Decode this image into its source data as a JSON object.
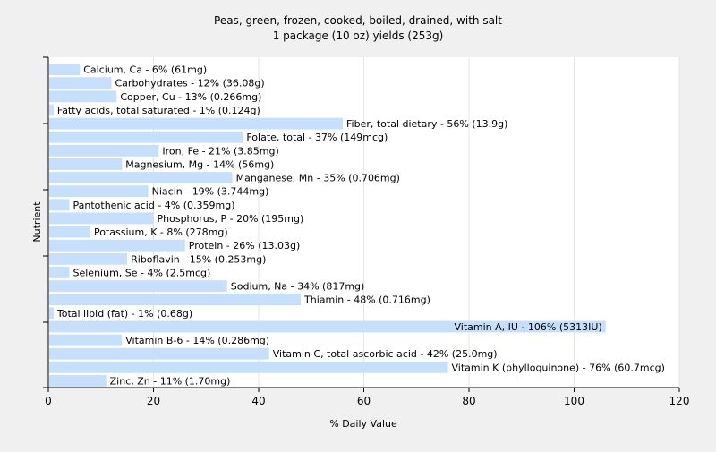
{
  "chart_data": {
    "type": "bar",
    "orientation": "horizontal",
    "title": "Peas, green, frozen, cooked, boiled, drained, with salt",
    "subtitle": "1 package (10 oz) yields (253g)",
    "xlabel": "% Daily Value",
    "ylabel": "Nutrient",
    "xlim": [
      0,
      120
    ],
    "xticks": [
      0,
      20,
      40,
      60,
      80,
      100,
      120
    ],
    "grid": true,
    "bar_color": "#c6dffc",
    "background_color": "#f0f0f0",
    "plot_background_color": "#ffffff",
    "bars": [
      {
        "label": "Calcium, Ca - 6% (61mg)",
        "value": 6
      },
      {
        "label": "Carbohydrates - 12% (36.08g)",
        "value": 12
      },
      {
        "label": "Copper, Cu - 13% (0.266mg)",
        "value": 13
      },
      {
        "label": "Fatty acids, total saturated - 1% (0.124g)",
        "value": 1
      },
      {
        "label": "Fiber, total dietary - 56% (13.9g)",
        "value": 56
      },
      {
        "label": "Folate, total - 37% (149mcg)",
        "value": 37
      },
      {
        "label": "Iron, Fe - 21% (3.85mg)",
        "value": 21
      },
      {
        "label": "Magnesium, Mg - 14% (56mg)",
        "value": 14
      },
      {
        "label": "Manganese, Mn - 35% (0.706mg)",
        "value": 35
      },
      {
        "label": "Niacin - 19% (3.744mg)",
        "value": 19
      },
      {
        "label": "Pantothenic acid - 4% (0.359mg)",
        "value": 4
      },
      {
        "label": "Phosphorus, P - 20% (195mg)",
        "value": 20
      },
      {
        "label": "Potassium, K - 8% (278mg)",
        "value": 8
      },
      {
        "label": "Protein - 26% (13.03g)",
        "value": 26
      },
      {
        "label": "Riboflavin - 15% (0.253mg)",
        "value": 15
      },
      {
        "label": "Selenium, Se - 4% (2.5mcg)",
        "value": 4
      },
      {
        "label": "Sodium, Na - 34% (817mg)",
        "value": 34
      },
      {
        "label": "Thiamin - 48% (0.716mg)",
        "value": 48
      },
      {
        "label": "Total lipid (fat) - 1% (0.68g)",
        "value": 1
      },
      {
        "label": "Vitamin A, IU - 106% (5313IU)",
        "value": 106
      },
      {
        "label": "Vitamin B-6 - 14% (0.286mg)",
        "value": 14
      },
      {
        "label": "Vitamin C, total ascorbic acid - 42% (25.0mg)",
        "value": 42
      },
      {
        "label": "Vitamin K (phylloquinone) - 76% (60.7mcg)",
        "value": 76
      },
      {
        "label": "Zinc, Zn - 11% (1.70mg)",
        "value": 11
      }
    ]
  }
}
